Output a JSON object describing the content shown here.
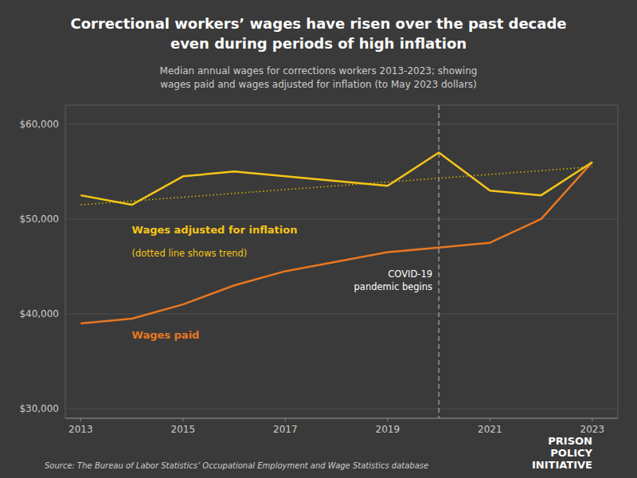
{
  "chart_data": {
    "type": "line",
    "title": "Correctional workers’ wages have risen over the past decade\neven during periods of high inflation",
    "subtitle": "Median annual wages for corrections workers 2013-2023; showing\nwages paid and wages adjusted for inflation (to May 2023 dollars)",
    "source": "Source: The Bureau of Labor Statistics’ Occupational Employment and Wage Statistics database",
    "watermark": "PRISON\nPOLICY\nINITIATIVE",
    "x": [
      2013,
      2014,
      2015,
      2016,
      2017,
      2018,
      2019,
      2020,
      2021,
      2022,
      2023
    ],
    "series": [
      {
        "name": "Wages paid",
        "color": "#e87722",
        "values": [
          39000,
          39500,
          41000,
          43000,
          44500,
          45500,
          46500,
          47000,
          47500,
          50000,
          56000
        ]
      },
      {
        "name": "Wages adjusted for inflation",
        "color": "#f5c518",
        "values": [
          52500,
          51500,
          54500,
          55000,
          54500,
          54000,
          53500,
          57000,
          53000,
          52500,
          56000
        ]
      },
      {
        "name": "(dotted line shows trend)",
        "color": "#c8b400",
        "line_style": "dotted",
        "x": [
          2013,
          2023
        ],
        "values": [
          51500,
          55500
        ]
      }
    ],
    "annotations": [
      {
        "x": 2020,
        "text": "COVID-19\npandemic begins",
        "line_style": "dashed"
      }
    ],
    "xlim": [
      2012.7,
      2023.5
    ],
    "ylim": [
      29000,
      62000
    ],
    "xticks": [
      2013,
      2015,
      2017,
      2019,
      2021,
      2023
    ],
    "yticks": [
      {
        "value": 30000,
        "label": "$30,000"
      },
      {
        "value": 40000,
        "label": "$40,000"
      },
      {
        "value": 50000,
        "label": "$50,000"
      },
      {
        "value": 60000,
        "label": "$60,000"
      }
    ],
    "grid": true
  }
}
